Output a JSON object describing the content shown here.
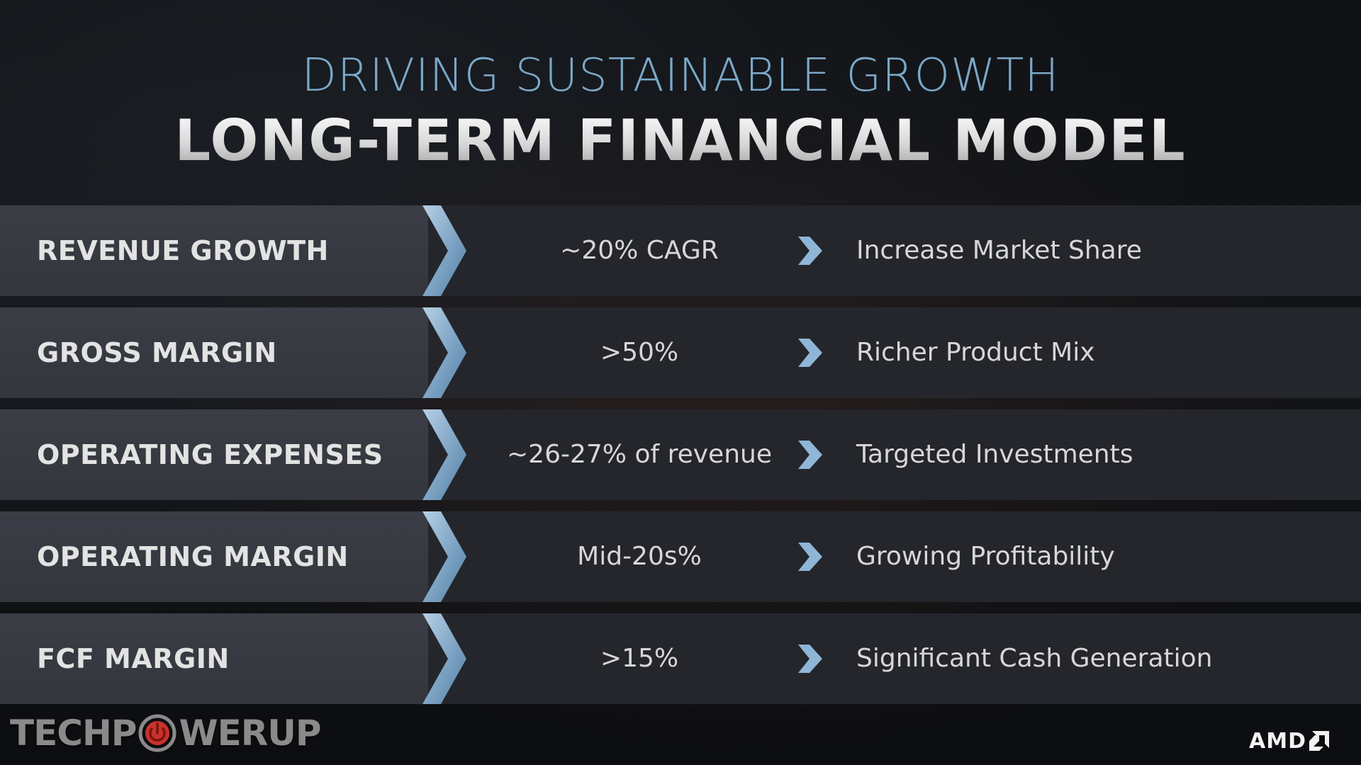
{
  "header": {
    "subtitle": "DRIVING SUSTAINABLE GROWTH",
    "title": "LONG-TERM FINANCIAL MODEL"
  },
  "rows": [
    {
      "label": "REVENUE GROWTH",
      "value": "~20% CAGR",
      "description": "Increase Market Share"
    },
    {
      "label": "GROSS MARGIN",
      "value": ">50%",
      "description": "Richer Product Mix"
    },
    {
      "label": "OPERATING EXPENSES",
      "value": "~26-27% of revenue",
      "description": "Targeted Investments"
    },
    {
      "label": "OPERATING MARGIN",
      "value": "Mid-20s%",
      "description": "Growing Profitability"
    },
    {
      "label": "FCF MARGIN",
      "value": ">15%",
      "description": "Significant Cash Generation"
    }
  ],
  "watermark": {
    "text_before": "TECHP",
    "text_after": "WERUP",
    "icon": "power-icon"
  },
  "brand": {
    "text": "AMD",
    "icon": "amd-arrow-icon"
  },
  "colors": {
    "accent_blue": "#7aa8c8",
    "chevron_light": "#b6d0e6",
    "chevron_dark": "#4f7ea6",
    "power_red": "#c8322a"
  }
}
